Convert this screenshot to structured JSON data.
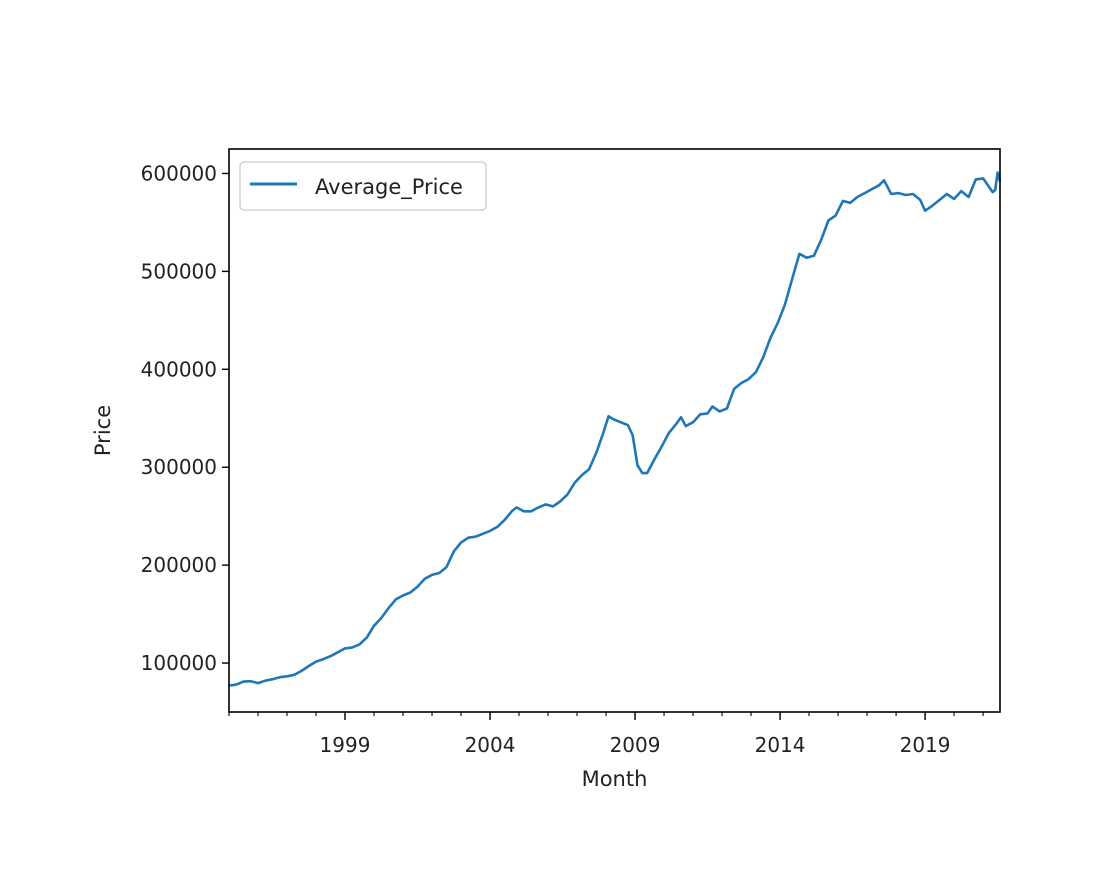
{
  "chart_data": {
    "type": "line",
    "xlabel": "Month",
    "ylabel": "Price",
    "xlim": [
      "1995-01",
      "2021-08"
    ],
    "ylim": [
      50000,
      625000
    ],
    "x_ticks": [
      {
        "value": "1999-01",
        "label": "1999"
      },
      {
        "value": "2004-01",
        "label": "2004"
      },
      {
        "value": "2009-01",
        "label": "2009"
      },
      {
        "value": "2014-01",
        "label": "2014"
      },
      {
        "value": "2019-01",
        "label": "2019"
      }
    ],
    "y_ticks": [
      100000,
      200000,
      300000,
      400000,
      500000,
      600000
    ],
    "minor_x_ticks": "yearly",
    "grid": false,
    "legend": {
      "position": "top-left"
    },
    "series": [
      {
        "name": "Average_Price",
        "color": "#1f77b4",
        "points": [
          [
            "1995-01",
            77000
          ],
          [
            "1995-04",
            78000
          ],
          [
            "1995-07",
            81000
          ],
          [
            "1995-10",
            81500
          ],
          [
            "1996-01",
            79500
          ],
          [
            "1996-04",
            82000
          ],
          [
            "1996-07",
            83500
          ],
          [
            "1996-10",
            85500
          ],
          [
            "1997-01",
            86500
          ],
          [
            "1997-04",
            88000
          ],
          [
            "1997-07",
            92000
          ],
          [
            "1997-10",
            97000
          ],
          [
            "1998-01",
            101500
          ],
          [
            "1998-04",
            104000
          ],
          [
            "1998-07",
            107000
          ],
          [
            "1998-10",
            111000
          ],
          [
            "1999-01",
            115000
          ],
          [
            "1999-04",
            116000
          ],
          [
            "1999-07",
            119000
          ],
          [
            "1999-10",
            126000
          ],
          [
            "2000-01",
            138000
          ],
          [
            "2000-04",
            146000
          ],
          [
            "2000-07",
            156000
          ],
          [
            "2000-10",
            165000
          ],
          [
            "2001-01",
            169000
          ],
          [
            "2001-04",
            172000
          ],
          [
            "2001-07",
            178000
          ],
          [
            "2001-10",
            186000
          ],
          [
            "2002-01",
            190000
          ],
          [
            "2002-04",
            192000
          ],
          [
            "2002-07",
            198000
          ],
          [
            "2002-10",
            214000
          ],
          [
            "2003-01",
            223000
          ],
          [
            "2003-04",
            228000
          ],
          [
            "2003-07",
            229000
          ],
          [
            "2003-10",
            232000
          ],
          [
            "2004-01",
            235000
          ],
          [
            "2004-04",
            239000
          ],
          [
            "2004-07",
            246000
          ],
          [
            "2004-10",
            255000
          ],
          [
            "2004-12",
            259000
          ],
          [
            "2005-03",
            255000
          ],
          [
            "2005-06",
            255000
          ],
          [
            "2005-09",
            259000
          ],
          [
            "2005-12",
            262000
          ],
          [
            "2006-03",
            260000
          ],
          [
            "2006-06",
            265000
          ],
          [
            "2006-09",
            272000
          ],
          [
            "2006-12",
            284000
          ],
          [
            "2007-03",
            292000
          ],
          [
            "2007-06",
            298000
          ],
          [
            "2007-09",
            315000
          ],
          [
            "2007-12",
            336000
          ],
          [
            "2008-02",
            352000
          ],
          [
            "2008-04",
            349000
          ],
          [
            "2008-07",
            346000
          ],
          [
            "2008-10",
            343000
          ],
          [
            "2008-12",
            333000
          ],
          [
            "2009-02",
            302000
          ],
          [
            "2009-04",
            294000
          ],
          [
            "2009-06",
            294000
          ],
          [
            "2009-09",
            308000
          ],
          [
            "2009-12",
            321000
          ],
          [
            "2010-03",
            335000
          ],
          [
            "2010-06",
            344000
          ],
          [
            "2010-08",
            351000
          ],
          [
            "2010-10",
            342000
          ],
          [
            "2011-01",
            346000
          ],
          [
            "2011-04",
            354000
          ],
          [
            "2011-07",
            355000
          ],
          [
            "2011-09",
            362000
          ],
          [
            "2011-12",
            357000
          ],
          [
            "2012-03",
            360000
          ],
          [
            "2012-06",
            380000
          ],
          [
            "2012-09",
            386000
          ],
          [
            "2012-12",
            390000
          ],
          [
            "2013-03",
            397000
          ],
          [
            "2013-06",
            412000
          ],
          [
            "2013-09",
            432000
          ],
          [
            "2013-12",
            447000
          ],
          [
            "2014-03",
            466000
          ],
          [
            "2014-06",
            492000
          ],
          [
            "2014-09",
            518000
          ],
          [
            "2014-12",
            514000
          ],
          [
            "2015-03",
            516000
          ],
          [
            "2015-06",
            532000
          ],
          [
            "2015-09",
            552000
          ],
          [
            "2015-12",
            557000
          ],
          [
            "2016-03",
            572000
          ],
          [
            "2016-06",
            570000
          ],
          [
            "2016-09",
            576000
          ],
          [
            "2016-12",
            580000
          ],
          [
            "2017-03",
            584000
          ],
          [
            "2017-06",
            588000
          ],
          [
            "2017-08",
            593000
          ],
          [
            "2017-11",
            579000
          ],
          [
            "2018-02",
            580000
          ],
          [
            "2018-05",
            578000
          ],
          [
            "2018-08",
            579000
          ],
          [
            "2018-11",
            573000
          ],
          [
            "2019-01",
            562000
          ],
          [
            "2019-04",
            567000
          ],
          [
            "2019-07",
            573000
          ],
          [
            "2019-10",
            579000
          ],
          [
            "2020-01",
            574000
          ],
          [
            "2020-04",
            582000
          ],
          [
            "2020-07",
            576000
          ],
          [
            "2020-10",
            594000
          ],
          [
            "2021-01",
            595000
          ],
          [
            "2021-03",
            588000
          ],
          [
            "2021-05",
            581000
          ],
          [
            "2021-06",
            583000
          ],
          [
            "2021-07",
            601000
          ],
          [
            "2021-08",
            592000
          ]
        ]
      }
    ]
  }
}
